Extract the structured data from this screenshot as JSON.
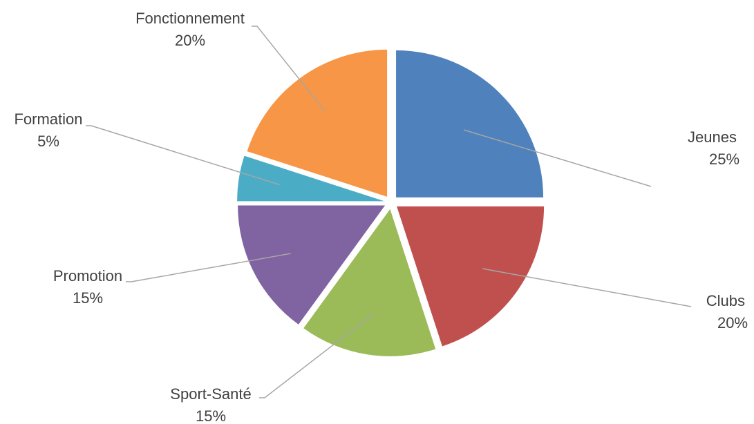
{
  "chart_data": {
    "type": "pie",
    "title": "",
    "slices": [
      {
        "label": "Jeunes",
        "value": 25,
        "value_label": "25%",
        "color": "#4F81BD"
      },
      {
        "label": "Clubs",
        "value": 20,
        "value_label": "20%",
        "color": "#C0504D"
      },
      {
        "label": "Sport-Santé",
        "value": 15,
        "value_label": "15%",
        "color": "#9BBB59"
      },
      {
        "label": "Promotion",
        "value": 15,
        "value_label": "15%",
        "color": "#8064A2"
      },
      {
        "label": "Formation",
        "value": 5,
        "value_label": "5%",
        "color": "#4BACC6"
      },
      {
        "label": "Fonctionnement",
        "value": 20,
        "value_label": "20%",
        "color": "#F79646"
      }
    ],
    "start_angle": "12 o'clock",
    "direction": "clockwise",
    "exploded": true,
    "legend": "none"
  }
}
